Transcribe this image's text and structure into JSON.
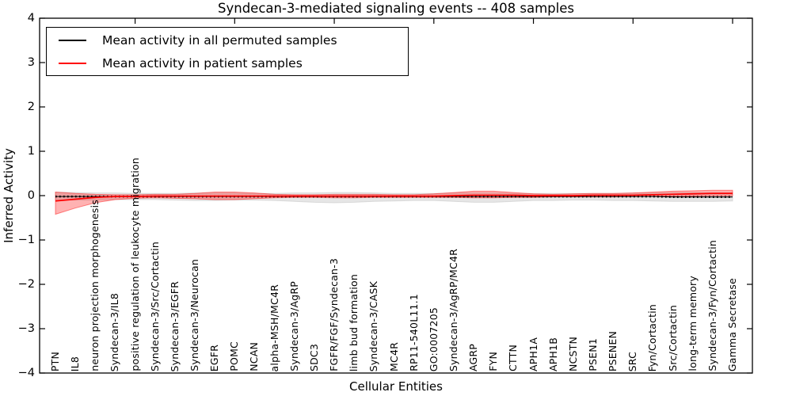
{
  "figure": {
    "background": "#ffffff"
  },
  "chart_data": {
    "type": "line",
    "title": "Syndecan-3-mediated signaling events -- 408 samples",
    "xlabel": "Cellular Entities",
    "ylabel": "Inferred Activity",
    "ylim": [
      -4,
      4
    ],
    "yticks": [
      -4,
      -3,
      -2,
      -1,
      0,
      1,
      2,
      3,
      4
    ],
    "ytick_labels": [
      "−4",
      "−3",
      "−2",
      "−1",
      "0",
      "1",
      "2",
      "3",
      "4"
    ],
    "top_tick_indices": [
      4,
      9,
      14,
      19,
      24,
      29,
      34
    ],
    "grid": false,
    "legend_position": "upper left",
    "categories": [
      "PTN",
      "IL8",
      "neuron projection morphogenesis",
      "Syndecan-3/IL8",
      "positive regulation of leukocyte migration",
      "Syndecan-3/Src/Cortactin",
      "Syndecan-3/EGFR",
      "Syndecan-3/Neurocan",
      "EGFR",
      "POMC",
      "NCAN",
      "alpha-MSH/MC4R",
      "Syndecan-3/AgRP",
      "SDC3",
      "FGFR/FGF/Syndecan-3",
      "limb bud formation",
      "Syndecan-3/CASK",
      "MC4R",
      "RP11-540L11.1",
      "GO:0007205",
      "Syndecan-3/AgRP/MC4R",
      "AGRP",
      "FYN",
      "CTTN",
      "APH1A",
      "APH1B",
      "NCSTN",
      "PSEN1",
      "PSENEN",
      "SRC",
      "Fyn/Cortactin",
      "Src/Cortactin",
      "long-term memory",
      "Syndecan-3/Fyn/Cortactin",
      "Gamma Secretase"
    ],
    "series": [
      {
        "name": "Mean activity in all permuted samples",
        "color": "#000000",
        "line_style": "solid-with-dots",
        "band_color": "#c8c8c8",
        "band_opacity": 0.45,
        "values": [
          -0.02,
          -0.02,
          -0.02,
          -0.02,
          -0.02,
          -0.02,
          -0.02,
          -0.02,
          -0.02,
          -0.02,
          -0.02,
          -0.02,
          -0.02,
          -0.02,
          -0.02,
          -0.02,
          -0.02,
          -0.02,
          -0.02,
          -0.02,
          -0.02,
          -0.02,
          -0.02,
          -0.02,
          -0.02,
          -0.02,
          -0.02,
          -0.02,
          -0.02,
          -0.02,
          -0.02,
          -0.03,
          -0.03,
          -0.03,
          -0.03
        ],
        "band_upper": [
          0.08,
          0.07,
          0.06,
          0.06,
          0.05,
          0.05,
          0.05,
          0.06,
          0.06,
          0.06,
          0.05,
          0.05,
          0.06,
          0.06,
          0.07,
          0.07,
          0.06,
          0.05,
          0.05,
          0.05,
          0.06,
          0.06,
          0.06,
          0.05,
          0.05,
          0.05,
          0.05,
          0.05,
          0.05,
          0.06,
          0.06,
          0.07,
          0.07,
          0.07,
          0.07
        ],
        "band_lower": [
          -0.1,
          -0.1,
          -0.1,
          -0.09,
          -0.09,
          -0.09,
          -0.1,
          -0.11,
          -0.11,
          -0.1,
          -0.1,
          -0.11,
          -0.13,
          -0.15,
          -0.16,
          -0.15,
          -0.13,
          -0.12,
          -0.11,
          -0.11,
          -0.13,
          -0.15,
          -0.15,
          -0.13,
          -0.11,
          -0.11,
          -0.1,
          -0.1,
          -0.11,
          -0.11,
          -0.12,
          -0.13,
          -0.13,
          -0.13,
          -0.12
        ]
      },
      {
        "name": "Mean activity in patient samples",
        "color": "#ff0000",
        "line_style": "solid",
        "band_color": "#ff0000",
        "band_opacity": 0.3,
        "values": [
          -0.12,
          -0.08,
          -0.04,
          -0.02,
          -0.02,
          -0.01,
          -0.01,
          -0.01,
          -0.01,
          -0.01,
          -0.01,
          -0.01,
          -0.01,
          -0.01,
          -0.01,
          -0.01,
          -0.01,
          -0.01,
          -0.01,
          -0.01,
          0.0,
          0.01,
          0.01,
          0.01,
          0.0,
          0.0,
          0.0,
          0.01,
          0.01,
          0.01,
          0.02,
          0.03,
          0.04,
          0.05,
          0.05
        ],
        "band_upper": [
          0.08,
          0.05,
          0.03,
          0.02,
          0.02,
          0.03,
          0.03,
          0.05,
          0.08,
          0.08,
          0.06,
          0.03,
          0.02,
          0.02,
          0.03,
          0.03,
          0.03,
          0.02,
          0.02,
          0.04,
          0.07,
          0.1,
          0.1,
          0.07,
          0.04,
          0.03,
          0.04,
          0.05,
          0.05,
          0.06,
          0.08,
          0.1,
          0.11,
          0.12,
          0.12
        ],
        "band_lower": [
          -0.42,
          -0.28,
          -0.16,
          -0.09,
          -0.06,
          -0.05,
          -0.06,
          -0.07,
          -0.09,
          -0.09,
          -0.07,
          -0.05,
          -0.04,
          -0.04,
          -0.05,
          -0.05,
          -0.04,
          -0.04,
          -0.04,
          -0.04,
          -0.04,
          -0.05,
          -0.05,
          -0.04,
          -0.04,
          -0.03,
          -0.03,
          -0.03,
          -0.03,
          -0.02,
          -0.02,
          -0.01,
          -0.01,
          0.0,
          0.0
        ]
      }
    ]
  }
}
